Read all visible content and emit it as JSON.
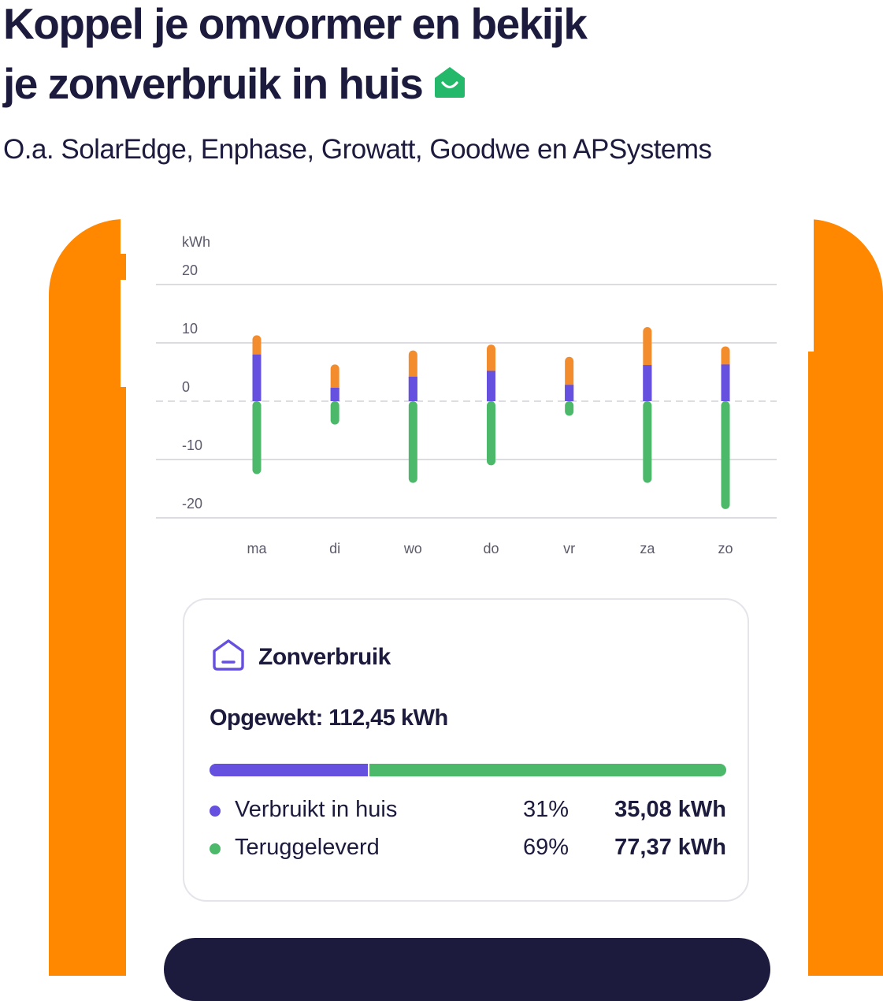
{
  "headline": {
    "line1": "Koppel je omvormer en bekijk",
    "line2": "je zonverbruik in huis"
  },
  "subtitle": "O.a. SolarEdge, Enphase, Growatt, Goodwe en APSystems",
  "colors": {
    "brand_orange": "#ff8800",
    "navy": "#1c1a3d",
    "purple": "#6650e0",
    "green": "#4cb96a",
    "orange_bar": "#f28c2c"
  },
  "icons": {
    "headline_badge": "smiling-house-icon",
    "card": "house-outline-icon"
  },
  "chart_data": {
    "type": "bar",
    "stacked": true,
    "ylabel": "kWh",
    "ylim": [
      -20,
      20
    ],
    "yticks": [
      20,
      10,
      0,
      -10,
      -20
    ],
    "categories": [
      "ma",
      "di",
      "wo",
      "do",
      "vr",
      "za",
      "zo"
    ],
    "series": [
      {
        "color": "#4cb96a",
        "values": [
          -12.5,
          -4,
          -14,
          -11,
          -2.5,
          -14,
          -18.5
        ]
      },
      {
        "color": "#6650e0",
        "values": [
          8,
          2.3,
          4.2,
          5.2,
          2.8,
          6.2,
          6.3
        ]
      },
      {
        "color": "#f28c2c",
        "values": [
          3.3,
          4,
          4.5,
          4.5,
          4.8,
          6.5,
          3.1
        ]
      }
    ],
    "grid": true,
    "zero_line": "dashed"
  },
  "card": {
    "title": "Zonverbruik",
    "generated": "Opgewekt: 112,45 kWh",
    "share_in_house": 0.31,
    "rows": [
      {
        "label": "Verbruikt in huis",
        "percent": "31%",
        "value": "35,08 kWh",
        "color": "#6650e0"
      },
      {
        "label": "Teruggeleverd",
        "percent": "69%",
        "value": "77,37 kWh",
        "color": "#4cb96a"
      }
    ]
  }
}
